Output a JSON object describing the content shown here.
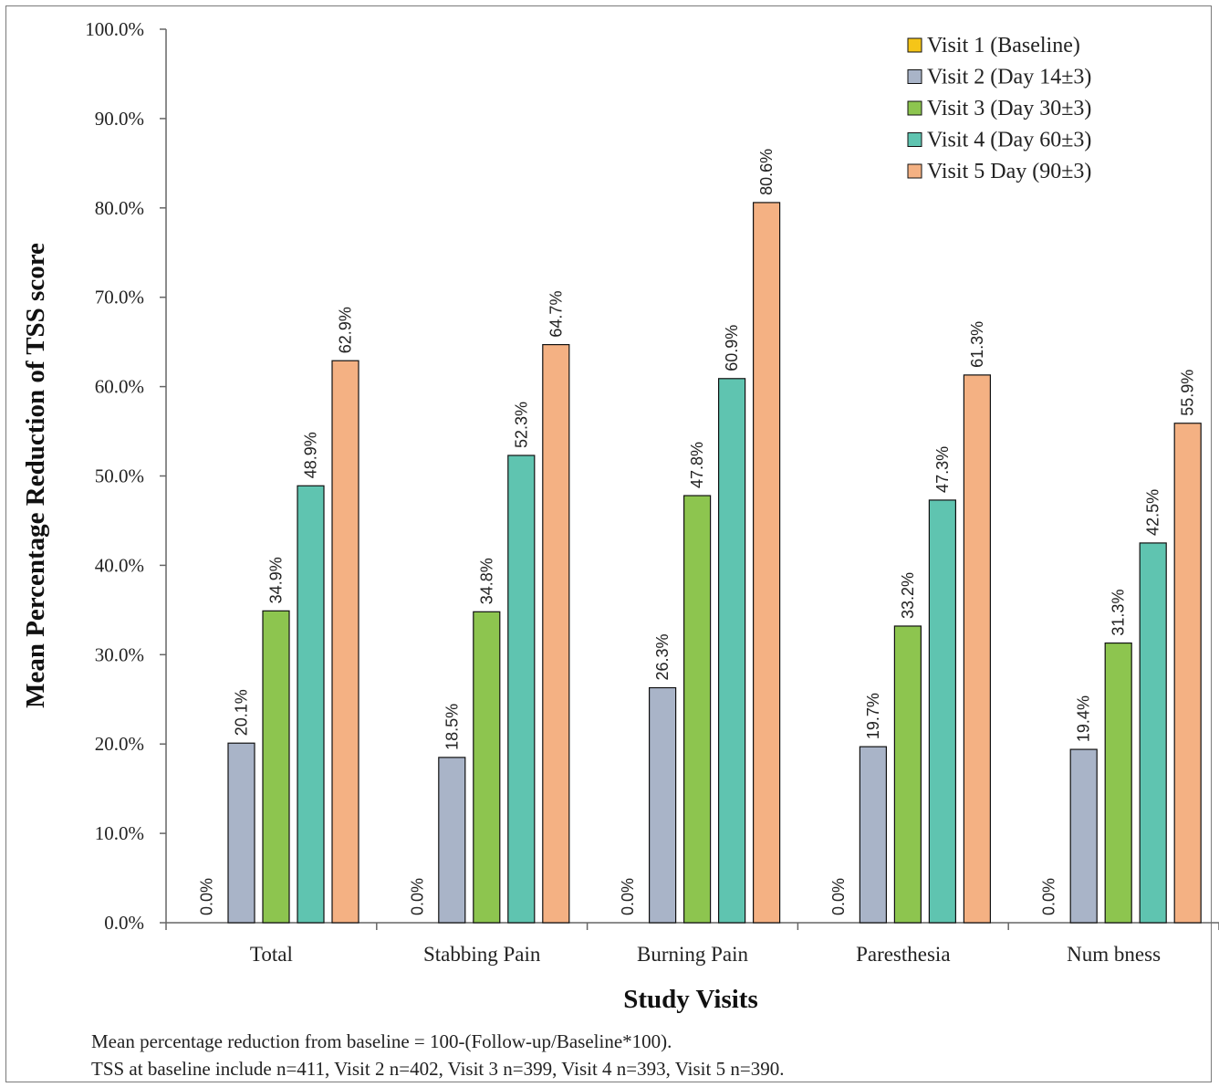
{
  "chart_data": {
    "type": "bar",
    "xlabel": "Study Visits",
    "ylabel": "Mean Percentage Reduction of TSS score",
    "ylim": [
      0,
      100
    ],
    "yticks": [
      "0.0%",
      "10.0%",
      "20.0%",
      "30.0%",
      "40.0%",
      "50.0%",
      "60.0%",
      "70.0%",
      "80.0%",
      "90.0%",
      "100.0%"
    ],
    "categories": [
      "Total",
      "Stabbing Pain",
      "Burning Pain",
      "Paresthesia",
      "Num bness"
    ],
    "legend_position": "top-right",
    "grid": false,
    "series": [
      {
        "name": "Visit 1 (Baseline)",
        "color": "#f5c518",
        "values": [
          0,
          0,
          0,
          0,
          0
        ],
        "labels": [
          "0.0%",
          "0.0%",
          "0.0%",
          "0.0%",
          "0.0%"
        ]
      },
      {
        "name": "Visit 2 (Day 14±3)",
        "color": "#a9b4c8",
        "values": [
          20.1,
          18.5,
          26.3,
          19.7,
          19.4
        ],
        "labels": [
          "20.1%",
          "18.5%",
          "26.3%",
          "19.7%",
          "19.4%"
        ]
      },
      {
        "name": "Visit 3 (Day 30±3)",
        "color": "#8dc54f",
        "values": [
          34.9,
          34.8,
          47.8,
          33.2,
          31.3
        ],
        "labels": [
          "34.9%",
          "34.8%",
          "47.8%",
          "33.2%",
          "31.3%"
        ]
      },
      {
        "name": "Visit 4 (Day 60±3)",
        "color": "#5fc4b0",
        "values": [
          48.9,
          52.3,
          60.9,
          47.3,
          42.5
        ],
        "labels": [
          "48.9%",
          "52.3%",
          "60.9%",
          "47.3%",
          "42.5%"
        ]
      },
      {
        "name": "Visit 5 Day (90±3)",
        "color": "#f4b183",
        "values": [
          62.9,
          64.7,
          80.6,
          61.3,
          55.9
        ],
        "labels": [
          "62.9%",
          "64.7%",
          "80.6%",
          "61.3%",
          "55.9%"
        ]
      }
    ]
  },
  "notes": [
    "Mean percentage reduction from baseline = 100-(Follow-up/Baseline*100).",
    "TSS at baseline include n=411, Visit 2 n=402, Visit 3 n=399, Visit 4 n=393, Visit 5 n=390."
  ]
}
